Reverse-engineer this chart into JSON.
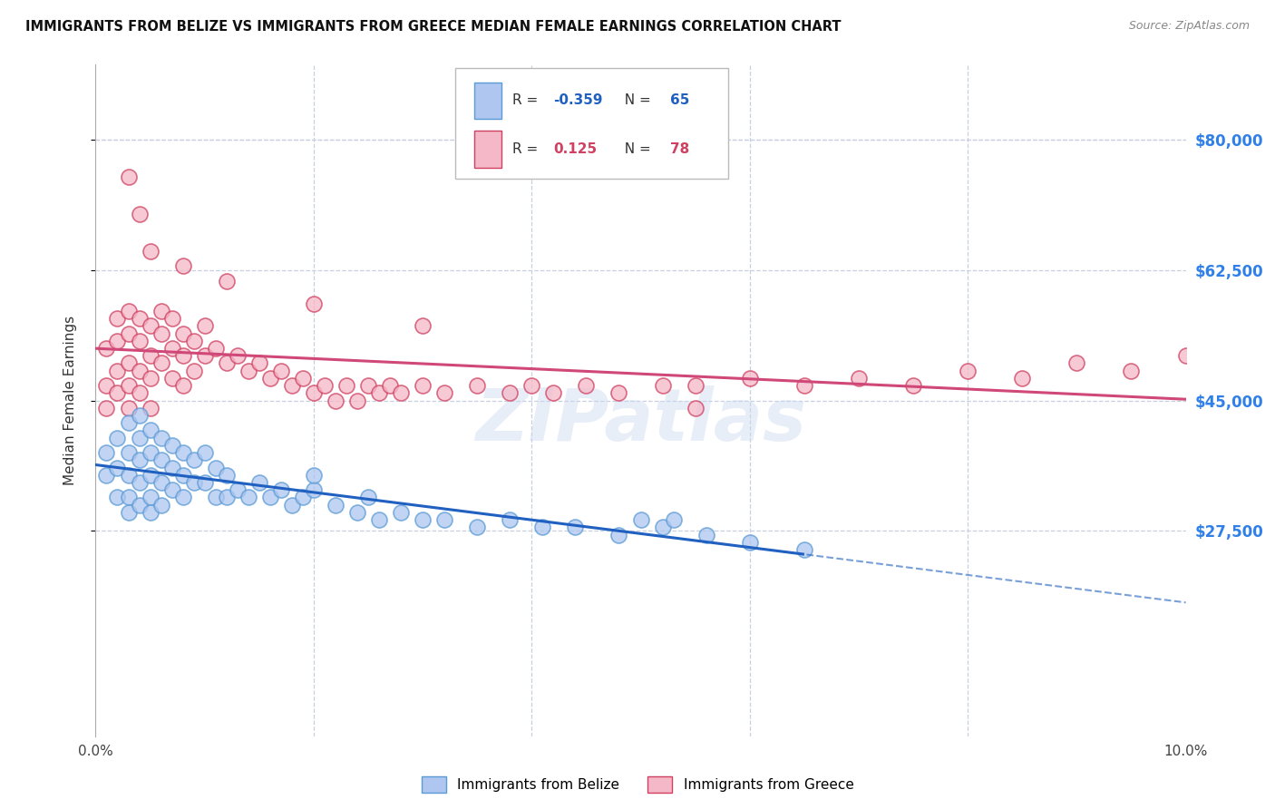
{
  "title": "IMMIGRANTS FROM BELIZE VS IMMIGRANTS FROM GREECE MEDIAN FEMALE EARNINGS CORRELATION CHART",
  "source": "Source: ZipAtlas.com",
  "ylabel": "Median Female Earnings",
  "xlim": [
    0.0,
    0.1
  ],
  "ylim": [
    0,
    90000
  ],
  "ytick_vals": [
    27500,
    45000,
    62500,
    80000
  ],
  "ytick_labels": [
    "$27,500",
    "$45,000",
    "$62,500",
    "$80,000"
  ],
  "xtick_vals": [
    0.0,
    0.02,
    0.04,
    0.06,
    0.08,
    0.1
  ],
  "xtick_labels": [
    "0.0%",
    "",
    "",
    "",
    "",
    "10.0%"
  ],
  "belize_fill": "#aec6f0",
  "belize_edge": "#5a9bd5",
  "greece_fill": "#f4b8c8",
  "greece_edge": "#d04060",
  "belize_trend_color": "#2060c0",
  "greece_trend_color": "#d04878",
  "belize_R": -0.359,
  "belize_N": 65,
  "greece_R": 0.125,
  "greece_N": 78,
  "watermark": "ZIPatlas",
  "legend_label_belize": "Immigrants from Belize",
  "legend_label_greece": "Immigrants from Greece",
  "grid_color": "#c8d0e0",
  "right_tick_color": "#3080e8",
  "belize_x": [
    0.001,
    0.001,
    0.002,
    0.002,
    0.002,
    0.003,
    0.003,
    0.003,
    0.003,
    0.003,
    0.004,
    0.004,
    0.004,
    0.004,
    0.004,
    0.005,
    0.005,
    0.005,
    0.005,
    0.005,
    0.006,
    0.006,
    0.006,
    0.006,
    0.007,
    0.007,
    0.007,
    0.008,
    0.008,
    0.008,
    0.009,
    0.009,
    0.01,
    0.01,
    0.011,
    0.011,
    0.012,
    0.012,
    0.013,
    0.014,
    0.015,
    0.016,
    0.017,
    0.018,
    0.019,
    0.02,
    0.022,
    0.024,
    0.026,
    0.028,
    0.03,
    0.032,
    0.035,
    0.038,
    0.041,
    0.044,
    0.048,
    0.052,
    0.056,
    0.06,
    0.065,
    0.02,
    0.025,
    0.05,
    0.053
  ],
  "belize_y": [
    38000,
    35000,
    40000,
    36000,
    32000,
    42000,
    38000,
    35000,
    32000,
    30000,
    43000,
    40000,
    37000,
    34000,
    31000,
    41000,
    38000,
    35000,
    32000,
    30000,
    40000,
    37000,
    34000,
    31000,
    39000,
    36000,
    33000,
    38000,
    35000,
    32000,
    37000,
    34000,
    38000,
    34000,
    36000,
    32000,
    35000,
    32000,
    33000,
    32000,
    34000,
    32000,
    33000,
    31000,
    32000,
    33000,
    31000,
    30000,
    29000,
    30000,
    29000,
    29000,
    28000,
    29000,
    28000,
    28000,
    27000,
    28000,
    27000,
    26000,
    25000,
    35000,
    32000,
    29000,
    29000
  ],
  "greece_x": [
    0.001,
    0.001,
    0.001,
    0.002,
    0.002,
    0.002,
    0.002,
    0.003,
    0.003,
    0.003,
    0.003,
    0.003,
    0.004,
    0.004,
    0.004,
    0.004,
    0.005,
    0.005,
    0.005,
    0.005,
    0.006,
    0.006,
    0.006,
    0.007,
    0.007,
    0.007,
    0.008,
    0.008,
    0.008,
    0.009,
    0.009,
    0.01,
    0.01,
    0.011,
    0.012,
    0.013,
    0.014,
    0.015,
    0.016,
    0.017,
    0.018,
    0.019,
    0.02,
    0.021,
    0.022,
    0.023,
    0.024,
    0.025,
    0.026,
    0.027,
    0.028,
    0.03,
    0.032,
    0.035,
    0.038,
    0.04,
    0.042,
    0.045,
    0.048,
    0.052,
    0.055,
    0.06,
    0.065,
    0.07,
    0.075,
    0.08,
    0.085,
    0.09,
    0.095,
    0.1,
    0.003,
    0.004,
    0.005,
    0.008,
    0.012,
    0.02,
    0.03,
    0.055
  ],
  "greece_y": [
    52000,
    47000,
    44000,
    56000,
    53000,
    49000,
    46000,
    57000,
    54000,
    50000,
    47000,
    44000,
    56000,
    53000,
    49000,
    46000,
    55000,
    51000,
    48000,
    44000,
    57000,
    54000,
    50000,
    56000,
    52000,
    48000,
    54000,
    51000,
    47000,
    53000,
    49000,
    55000,
    51000,
    52000,
    50000,
    51000,
    49000,
    50000,
    48000,
    49000,
    47000,
    48000,
    46000,
    47000,
    45000,
    47000,
    45000,
    47000,
    46000,
    47000,
    46000,
    47000,
    46000,
    47000,
    46000,
    47000,
    46000,
    47000,
    46000,
    47000,
    47000,
    48000,
    47000,
    48000,
    47000,
    49000,
    48000,
    50000,
    49000,
    51000,
    75000,
    70000,
    65000,
    63000,
    61000,
    58000,
    55000,
    44000
  ]
}
